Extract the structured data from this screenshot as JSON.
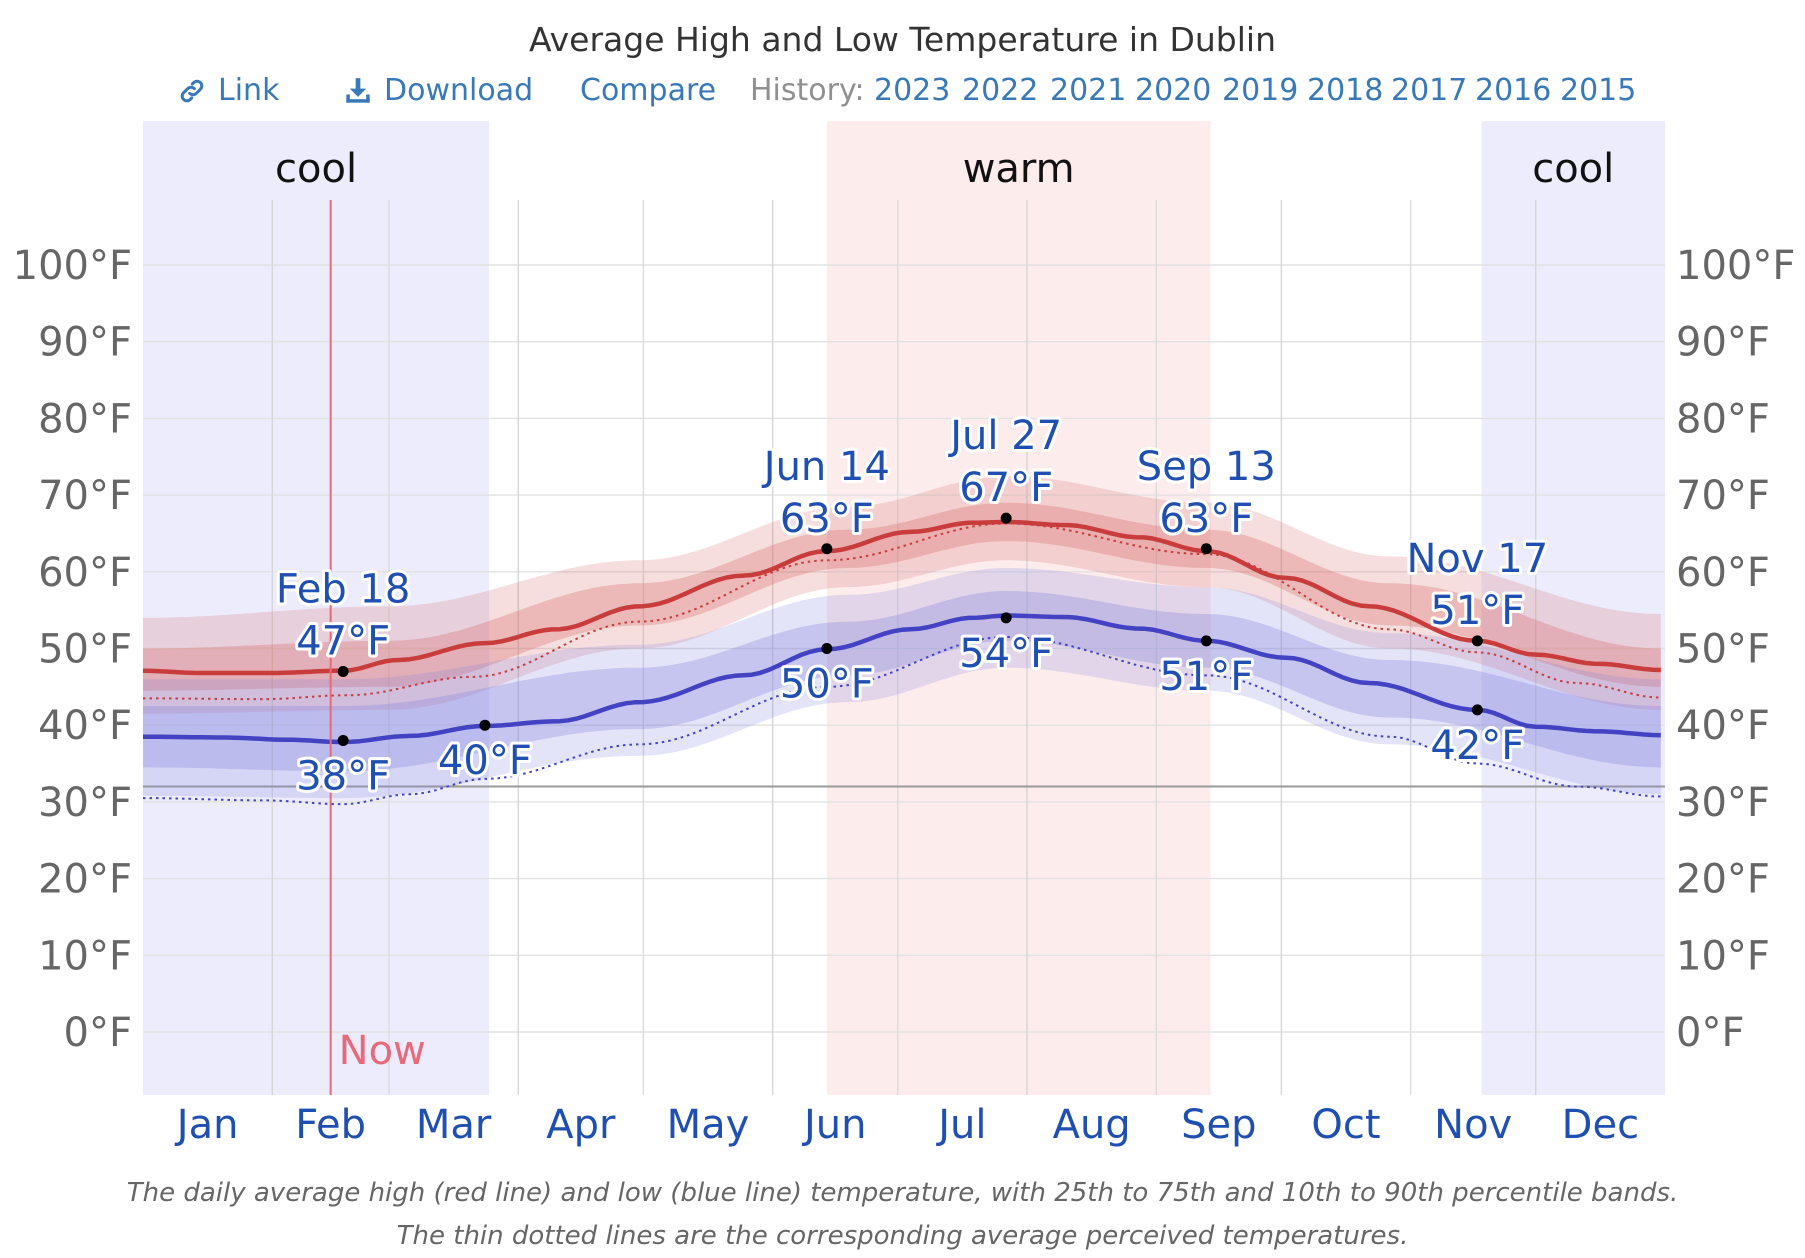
{
  "title": "Average High and Low Temperature in Dublin",
  "toolbar": {
    "link_label": "Link",
    "download_label": "Download",
    "compare_label": "Compare",
    "history_label": "History:",
    "history_years": [
      "2023",
      "2022",
      "2021",
      "2020",
      "2019",
      "2018",
      "2017",
      "2016",
      "2015"
    ],
    "link_color": "#3a79b8"
  },
  "chart_data": {
    "type": "line",
    "title": "Average High and Low Temperature in Dublin",
    "x_unit": "day of year",
    "xlim": [
      1,
      365
    ],
    "ylim": [
      -10,
      115
    ],
    "y_ticks": [
      0,
      10,
      20,
      30,
      40,
      50,
      60,
      70,
      80,
      90,
      100
    ],
    "y_tick_labels": [
      "0°F",
      "10°F",
      "20°F",
      "30°F",
      "40°F",
      "50°F",
      "60°F",
      "70°F",
      "80°F",
      "90°F",
      "100°F"
    ],
    "y_axis_labels_on": "left and right",
    "months": [
      "Jan",
      "Feb",
      "Mar",
      "Apr",
      "May",
      "Jun",
      "Jul",
      "Aug",
      "Sep",
      "Oct",
      "Nov",
      "Dec"
    ],
    "month_lengths": [
      31,
      28,
      31,
      30,
      31,
      30,
      31,
      31,
      30,
      31,
      30,
      31
    ],
    "freezing_line": 32,
    "grid": true,
    "seasons": [
      {
        "label": "cool",
        "start_day": 1,
        "end_day": 83,
        "color": "#ececfd"
      },
      {
        "label": "warm",
        "start_day": 165,
        "end_day": 256,
        "color": "#fdecec"
      },
      {
        "label": "cool",
        "start_day": 322,
        "end_day": 365,
        "color": "#ececfd"
      }
    ],
    "now": {
      "label": "Now",
      "day": 46,
      "color": "#e86a7a"
    },
    "series": [
      {
        "key": "high",
        "color": "#c83c3c",
        "band_color": "#d66a6a",
        "points": [
          [
            1,
            47.1
          ],
          [
            15,
            46.8
          ],
          [
            31,
            46.8
          ],
          [
            49,
            47.1
          ],
          [
            62,
            48.5
          ],
          [
            83,
            50.7
          ],
          [
            100,
            52.5
          ],
          [
            120,
            55.5
          ],
          [
            145,
            59.5
          ],
          [
            165,
            62.7
          ],
          [
            185,
            65.2
          ],
          [
            200,
            66.4
          ],
          [
            208,
            66.5
          ],
          [
            222,
            66.1
          ],
          [
            240,
            64.5
          ],
          [
            256,
            62.7
          ],
          [
            275,
            59.2
          ],
          [
            295,
            55.5
          ],
          [
            321,
            51.0
          ],
          [
            335,
            49.2
          ],
          [
            350,
            48.0
          ],
          [
            365,
            47.2
          ]
        ],
        "p25": [
          [
            1,
            44.5
          ],
          [
            60,
            45
          ],
          [
            120,
            53
          ],
          [
            170,
            60.5
          ],
          [
            208,
            64
          ],
          [
            256,
            60.5
          ],
          [
            300,
            53
          ],
          [
            365,
            45
          ]
        ],
        "p75": [
          [
            1,
            50
          ],
          [
            60,
            51
          ],
          [
            120,
            58.5
          ],
          [
            170,
            65.5
          ],
          [
            208,
            69
          ],
          [
            256,
            65.5
          ],
          [
            300,
            58.5
          ],
          [
            365,
            50
          ]
        ],
        "p10": [
          [
            1,
            41.5
          ],
          [
            60,
            42
          ],
          [
            120,
            50
          ],
          [
            170,
            58
          ],
          [
            208,
            61.5
          ],
          [
            256,
            58
          ],
          [
            300,
            50
          ],
          [
            365,
            42
          ]
        ],
        "p90": [
          [
            1,
            54
          ],
          [
            60,
            55.5
          ],
          [
            120,
            61.5
          ],
          [
            170,
            68.5
          ],
          [
            208,
            72.5
          ],
          [
            256,
            69
          ],
          [
            300,
            62
          ],
          [
            365,
            54.5
          ]
        ],
        "perceived": [
          [
            1,
            43.5
          ],
          [
            30,
            43.4
          ],
          [
            50,
            43.9
          ],
          [
            80,
            46.3
          ],
          [
            120,
            53.5
          ],
          [
            165,
            61.5
          ],
          [
            208,
            66.3
          ],
          [
            256,
            62.3
          ],
          [
            300,
            52.5
          ],
          [
            321,
            49.5
          ],
          [
            345,
            45.5
          ],
          [
            365,
            43.6
          ]
        ]
      },
      {
        "key": "low",
        "color": "#4242c2",
        "band_color": "#8585dd",
        "points": [
          [
            1,
            38.5
          ],
          [
            20,
            38.4
          ],
          [
            36,
            38.1
          ],
          [
            49,
            37.8
          ],
          [
            65,
            38.6
          ],
          [
            83,
            39.9
          ],
          [
            100,
            40.5
          ],
          [
            120,
            43
          ],
          [
            145,
            46.5
          ],
          [
            165,
            49.9
          ],
          [
            185,
            52.5
          ],
          [
            200,
            54
          ],
          [
            208,
            54.3
          ],
          [
            222,
            54.1
          ],
          [
            240,
            52.6
          ],
          [
            256,
            51.0
          ],
          [
            275,
            48.8
          ],
          [
            295,
            45.5
          ],
          [
            321,
            42.0
          ],
          [
            335,
            39.8
          ],
          [
            350,
            39.2
          ],
          [
            365,
            38.7
          ]
        ],
        "p25": [
          [
            1,
            34.5
          ],
          [
            49,
            34
          ],
          [
            120,
            39.5
          ],
          [
            170,
            46.5
          ],
          [
            208,
            51
          ],
          [
            256,
            47.5
          ],
          [
            300,
            41
          ],
          [
            365,
            34.5
          ]
        ],
        "p75": [
          [
            1,
            42.5
          ],
          [
            49,
            42.5
          ],
          [
            120,
            47.5
          ],
          [
            170,
            53.5
          ],
          [
            208,
            57.5
          ],
          [
            256,
            54.5
          ],
          [
            300,
            48.5
          ],
          [
            365,
            42.5
          ]
        ],
        "p10": [
          [
            1,
            30.8
          ],
          [
            49,
            30.5
          ],
          [
            120,
            36
          ],
          [
            170,
            43
          ],
          [
            208,
            47.5
          ],
          [
            256,
            44.5
          ],
          [
            300,
            37.5
          ],
          [
            365,
            31
          ]
        ],
        "p90": [
          [
            1,
            46
          ],
          [
            49,
            46
          ],
          [
            120,
            50.5
          ],
          [
            170,
            57
          ],
          [
            208,
            60.5
          ],
          [
            256,
            58
          ],
          [
            300,
            52
          ],
          [
            365,
            46
          ]
        ],
        "perceived": [
          [
            1,
            30.5
          ],
          [
            30,
            30.2
          ],
          [
            49,
            29.7
          ],
          [
            65,
            31
          ],
          [
            83,
            33
          ],
          [
            120,
            37.5
          ],
          [
            165,
            45
          ],
          [
            208,
            51.5
          ],
          [
            256,
            46.5
          ],
          [
            300,
            38.5
          ],
          [
            321,
            35
          ],
          [
            345,
            32
          ],
          [
            365,
            30.7
          ]
        ]
      }
    ],
    "annotations": [
      {
        "series": "high",
        "day": 49,
        "value": 47,
        "date": "Feb 18",
        "label": "47°F",
        "position": "above"
      },
      {
        "series": "low",
        "day": 49,
        "value": 38,
        "label": "38°F",
        "position": "below"
      },
      {
        "series": "low",
        "day": 83,
        "value": 40,
        "label": "40°F",
        "position": "below"
      },
      {
        "series": "high",
        "day": 165,
        "value": 63,
        "date": "Jun 14",
        "label": "63°F",
        "position": "above"
      },
      {
        "series": "low",
        "day": 165,
        "value": 50,
        "label": "50°F",
        "position": "below"
      },
      {
        "series": "high",
        "day": 208,
        "value": 67,
        "date": "Jul 27",
        "label": "67°F",
        "position": "above"
      },
      {
        "series": "low",
        "day": 208,
        "value": 54,
        "label": "54°F",
        "position": "below"
      },
      {
        "series": "high",
        "day": 256,
        "value": 63,
        "date": "Sep 13",
        "label": "63°F",
        "position": "above"
      },
      {
        "series": "low",
        "day": 256,
        "value": 51,
        "label": "51°F",
        "position": "below"
      },
      {
        "series": "high",
        "day": 321,
        "value": 51,
        "date": "Nov 17",
        "label": "51°F",
        "position": "above"
      },
      {
        "series": "low",
        "day": 321,
        "value": 42,
        "label": "42°F",
        "position": "below"
      }
    ]
  },
  "caption": {
    "line1": "The daily average high (red line) and low (blue line) temperature, with 25th to 75th and 10th to 90th percentile bands.",
    "line2": "The thin dotted lines are the corresponding average perceived temperatures."
  }
}
